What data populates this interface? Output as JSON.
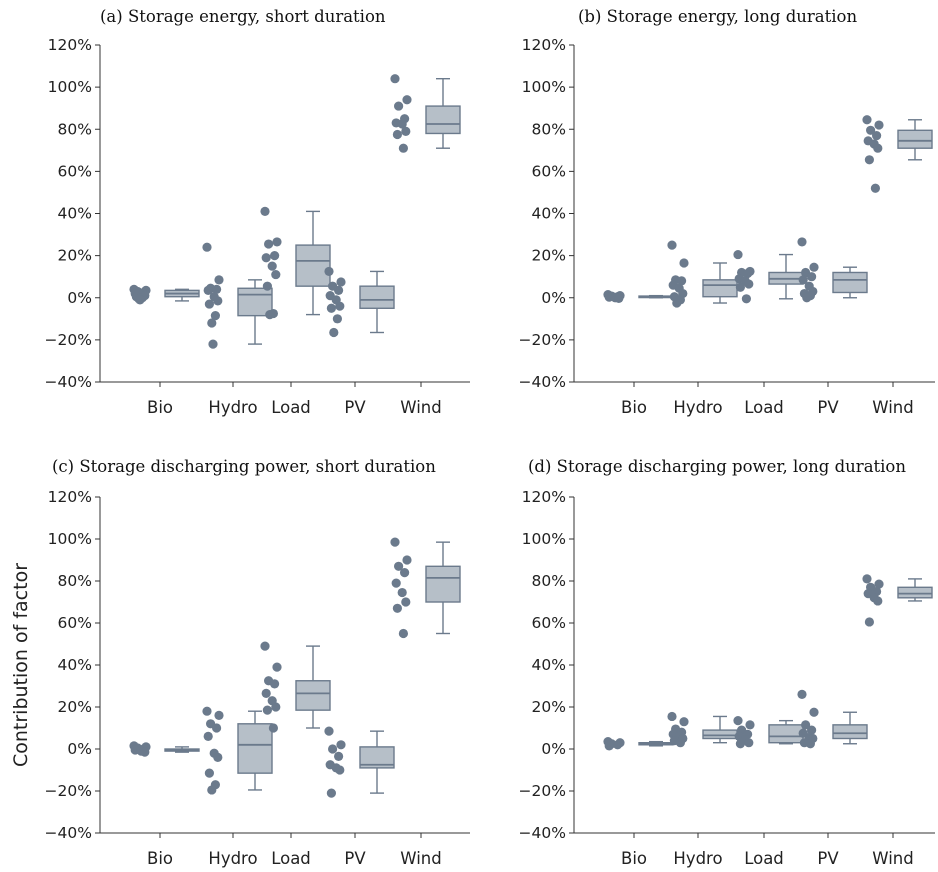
{
  "figure": {
    "shared_ylabel": "Contribution of factor",
    "colors": {
      "point": "#6b7a8c",
      "box_fill": "#b6bfc8",
      "box_stroke": "#6b7a8c"
    }
  },
  "chart_data": [
    {
      "type": "box",
      "title": "(a) Storage energy, short duration",
      "categories": [
        "Bio",
        "Hydro",
        "Load",
        "PV",
        "Wind"
      ],
      "ylim": [
        -40,
        120
      ],
      "yticks": [
        -40,
        -20,
        0,
        20,
        40,
        60,
        80,
        100,
        120
      ],
      "ytick_labels": [
        "−40%",
        "−20%",
        "0%",
        "20%",
        "40%",
        "60%",
        "80%",
        "100%",
        "120%"
      ],
      "xlabel": "",
      "ylabel": "",
      "grid": false,
      "boxes": [
        {
          "category": "Bio",
          "whisker_low": -1.5,
          "q1": 0.5,
          "median": 2,
          "q3": 3.5,
          "whisker_high": 4,
          "points": [
            4,
            3.5,
            3,
            2.5,
            2,
            1.5,
            1,
            0.5,
            0,
            -0.5,
            -1
          ]
        },
        {
          "category": "Hydro",
          "whisker_low": -22,
          "q1": -8.5,
          "median": 1.5,
          "q3": 4.5,
          "whisker_high": 8.5,
          "points": [
            24,
            8.5,
            4.5,
            4,
            3.5,
            0.5,
            -1.5,
            -3,
            -8.5,
            -12,
            -22
          ]
        },
        {
          "category": "Load",
          "whisker_low": -8,
          "q1": 5.5,
          "median": 17.5,
          "q3": 25,
          "whisker_high": 41,
          "points": [
            41,
            26.5,
            25.5,
            20,
            19,
            15,
            11,
            5.5,
            -7.5,
            -8
          ]
        },
        {
          "category": "PV",
          "whisker_low": -16.5,
          "q1": -5,
          "median": -1,
          "q3": 5.5,
          "whisker_high": 12.5,
          "points": [
            12.5,
            7.5,
            5.5,
            3.5,
            1,
            -1,
            -4,
            -5,
            -10,
            -16.5
          ]
        },
        {
          "category": "Wind",
          "whisker_low": 71,
          "q1": 78,
          "median": 82.5,
          "q3": 91,
          "whisker_high": 104,
          "points": [
            104,
            94,
            91,
            85,
            83,
            82.5,
            79,
            77.5,
            71
          ]
        }
      ]
    },
    {
      "type": "box",
      "title": "(b) Storage energy, long duration",
      "categories": [
        "Bio",
        "Hydro",
        "Load",
        "PV",
        "Wind"
      ],
      "ylim": [
        -40,
        120
      ],
      "yticks": [
        -40,
        -20,
        0,
        20,
        40,
        60,
        80,
        100,
        120
      ],
      "ytick_labels": [
        "−40%",
        "−20%",
        "0%",
        "20%",
        "40%",
        "60%",
        "80%",
        "100%",
        "120%"
      ],
      "xlabel": "",
      "ylabel": "",
      "grid": false,
      "boxes": [
        {
          "category": "Bio",
          "whisker_low": 0,
          "q1": 0.2,
          "median": 0.5,
          "q3": 0.8,
          "whisker_high": 1,
          "points": [
            1.5,
            1,
            0.8,
            0.5,
            0.3,
            0,
            -0.3
          ]
        },
        {
          "category": "Hydro",
          "whisker_low": -2.5,
          "q1": 0.5,
          "median": 6,
          "q3": 8.5,
          "whisker_high": 16.5,
          "points": [
            25,
            16.5,
            8.5,
            8,
            6,
            4.5,
            2,
            0.5,
            -1,
            -2.5
          ]
        },
        {
          "category": "Load",
          "whisker_low": -0.5,
          "q1": 6.5,
          "median": 9,
          "q3": 12,
          "whisker_high": 20.5,
          "points": [
            20.5,
            12.5,
            12,
            11.5,
            9,
            8,
            6.5,
            5,
            -0.5
          ]
        },
        {
          "category": "PV",
          "whisker_low": 0,
          "q1": 2.5,
          "median": 8.5,
          "q3": 12,
          "whisker_high": 14.5,
          "points": [
            26.5,
            14.5,
            12,
            10,
            8.5,
            5.5,
            3,
            2,
            1,
            0
          ]
        },
        {
          "category": "Wind",
          "whisker_low": 65.5,
          "q1": 71,
          "median": 74.5,
          "q3": 79.5,
          "whisker_high": 84.5,
          "points": [
            84.5,
            82,
            79.5,
            77,
            74.5,
            73,
            71,
            65.5,
            52
          ]
        }
      ]
    },
    {
      "type": "box",
      "title": "(c) Storage discharging power, short duration",
      "categories": [
        "Bio",
        "Hydro",
        "Load",
        "PV",
        "Wind"
      ],
      "ylim": [
        -40,
        120
      ],
      "yticks": [
        -40,
        -20,
        0,
        20,
        40,
        60,
        80,
        100,
        120
      ],
      "ytick_labels": [
        "−40%",
        "−20%",
        "0%",
        "20%",
        "40%",
        "60%",
        "80%",
        "100%",
        "120%"
      ],
      "xlabel": "",
      "ylabel": "Contribution of factor",
      "grid": false,
      "boxes": [
        {
          "category": "Bio",
          "whisker_low": -1.5,
          "q1": -1,
          "median": -0.5,
          "q3": 0,
          "whisker_high": 1,
          "points": [
            1.5,
            1,
            0.5,
            0,
            -0.5,
            -1,
            -1.5
          ]
        },
        {
          "category": "Hydro",
          "whisker_low": -19.5,
          "q1": -11.5,
          "median": 2,
          "q3": 12,
          "whisker_high": 18,
          "points": [
            18,
            16,
            12,
            10,
            6,
            -2,
            -4,
            -11.5,
            -17,
            -19.5
          ]
        },
        {
          "category": "Load",
          "whisker_low": 10,
          "q1": 18.5,
          "median": 26.5,
          "q3": 32.5,
          "whisker_high": 49,
          "points": [
            49,
            39,
            32.5,
            31,
            26.5,
            23,
            20,
            18.5,
            10
          ]
        },
        {
          "category": "PV",
          "whisker_low": -21,
          "q1": -9,
          "median": -7.5,
          "q3": 1,
          "whisker_high": 8.5,
          "points": [
            8.5,
            2,
            0,
            -3.5,
            -7.5,
            -9,
            -10,
            -21
          ]
        },
        {
          "category": "Wind",
          "whisker_low": 55,
          "q1": 70,
          "median": 81.5,
          "q3": 87,
          "whisker_high": 98.5,
          "points": [
            98.5,
            90,
            87,
            84,
            79,
            74.5,
            70,
            67,
            55
          ]
        }
      ]
    },
    {
      "type": "box",
      "title": "(d) Storage discharging power, long duration",
      "categories": [
        "Bio",
        "Hydro",
        "Load",
        "PV",
        "Wind"
      ],
      "ylim": [
        -40,
        120
      ],
      "yticks": [
        -40,
        -20,
        0,
        20,
        40,
        60,
        80,
        100,
        120
      ],
      "ytick_labels": [
        "−40%",
        "−20%",
        "0%",
        "20%",
        "40%",
        "60%",
        "80%",
        "100%",
        "120%"
      ],
      "xlabel": "",
      "ylabel": "",
      "grid": false,
      "boxes": [
        {
          "category": "Bio",
          "whisker_low": 1.5,
          "q1": 2,
          "median": 2.5,
          "q3": 3,
          "whisker_high": 3.5,
          "points": [
            3.5,
            3,
            2.5,
            2,
            1.5
          ]
        },
        {
          "category": "Hydro",
          "whisker_low": 3,
          "q1": 5,
          "median": 6.5,
          "q3": 9,
          "whisker_high": 15.5,
          "points": [
            15.5,
            13,
            9.5,
            8,
            7,
            6,
            5,
            4,
            3
          ]
        },
        {
          "category": "Load",
          "whisker_low": 2.5,
          "q1": 3,
          "median": 6,
          "q3": 11.5,
          "whisker_high": 13.5,
          "points": [
            13.5,
            11.5,
            9,
            7,
            6,
            4.5,
            3,
            2.5
          ]
        },
        {
          "category": "PV",
          "whisker_low": 2.5,
          "q1": 5,
          "median": 7.5,
          "q3": 11.5,
          "whisker_high": 17.5,
          "points": [
            26,
            17.5,
            11.5,
            9,
            7.5,
            5.5,
            5,
            3,
            2.5
          ]
        },
        {
          "category": "Wind",
          "whisker_low": 70.5,
          "q1": 72,
          "median": 74,
          "q3": 77,
          "whisker_high": 81,
          "points": [
            81,
            78.5,
            77,
            75,
            74,
            72,
            70.5,
            60.5
          ]
        }
      ]
    }
  ]
}
